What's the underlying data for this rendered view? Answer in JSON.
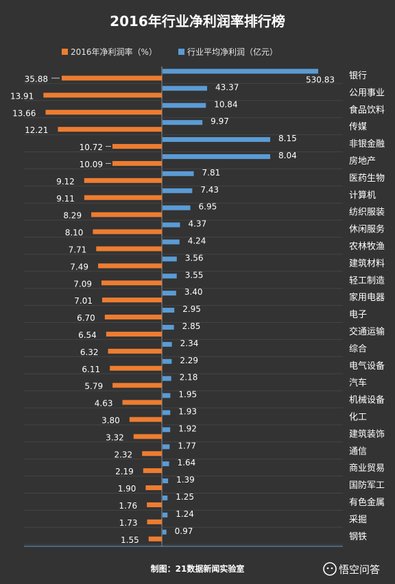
{
  "chart_data": {
    "type": "bar",
    "title": "2016年行业净利润率排行榜",
    "legend": [
      {
        "name": "2016年净利润率（%）",
        "color": "#ed7d31"
      },
      {
        "name": "行业平均净利润（亿元）",
        "color": "#5b9bd5"
      }
    ],
    "categories": [
      "银行",
      "公用事业",
      "食品饮料",
      "传媒",
      "非银金融",
      "房地产",
      "医药生物",
      "计算机",
      "纺织服装",
      "休闲服务",
      "农林牧渔",
      "建筑材料",
      "轻工制造",
      "家用电器",
      "电子",
      "交通运输",
      "综合",
      "电气设备",
      "汽车",
      "机械设备",
      "化工",
      "建筑装饰",
      "通信",
      "商业贸易",
      "国防军工",
      "有色金属",
      "采掘",
      "钢铁"
    ],
    "series": [
      {
        "name": "2016年净利润率（%）",
        "color": "#ed7d31",
        "values": [
          "35.88",
          "13.91",
          "13.66",
          "12.21",
          "10.72",
          "10.09",
          "9.12",
          "9.11",
          "8.29",
          "8.10",
          "7.71",
          "7.49",
          "7.09",
          "7.01",
          "6.70",
          "6.54",
          "6.32",
          "6.11",
          "5.79",
          "4.63",
          "3.80",
          "3.32",
          "2.32",
          "2.19",
          "1.90",
          "1.76",
          "1.73",
          "1.55"
        ]
      },
      {
        "name": "行业平均净利润（亿元）",
        "color": "#5b9bd5",
        "values": [
          "530.83",
          "43.37",
          "10.84",
          "9.97",
          "8.15",
          "8.04",
          "7.81",
          "7.43",
          "6.95",
          "4.37",
          "4.24",
          "3.56",
          "3.55",
          "3.40",
          "2.95",
          "2.85",
          "2.34",
          "2.29",
          "2.18",
          "1.95",
          "1.93",
          "1.92",
          "1.77",
          "1.64",
          "1.39",
          "1.25",
          "1.24",
          "0.97"
        ]
      }
    ]
  },
  "footer": {
    "source": "制图：21数据新闻实验室",
    "brand": "悟空问答"
  }
}
